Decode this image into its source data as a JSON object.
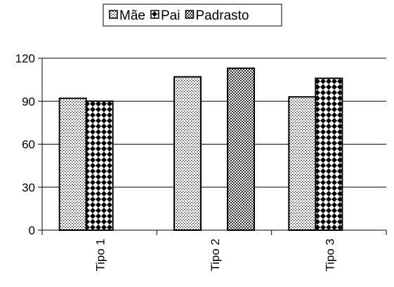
{
  "chart_data": {
    "type": "bar",
    "categories": [
      "Tipo 1",
      "Tipo 2",
      "Tipo 3"
    ],
    "series": [
      {
        "name": "Mãe",
        "values": [
          92,
          107,
          93
        ],
        "pattern": "dots"
      },
      {
        "name": "Pai",
        "values": [
          90,
          null,
          106
        ],
        "pattern": "checker"
      },
      {
        "name": "Padrasto",
        "values": [
          null,
          113,
          null
        ],
        "pattern": "crosshatch"
      }
    ],
    "ylim": [
      0,
      120
    ],
    "yticks": [
      0,
      30,
      60,
      90,
      120
    ],
    "grid": true,
    "legend_position": "top-center",
    "colors": {
      "bar_outline": "#000000",
      "pattern_ink": "#000000",
      "background": "#ffffff",
      "grid": "#000000"
    }
  }
}
